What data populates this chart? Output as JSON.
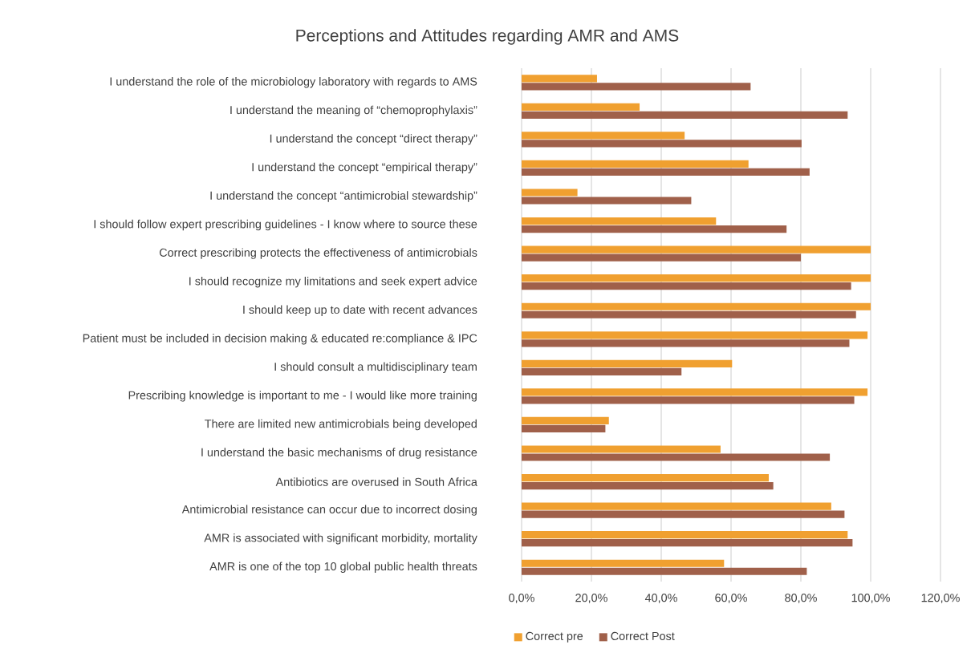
{
  "chart_data": {
    "type": "bar",
    "orientation": "horizontal",
    "title": "Perceptions and Attitudes regarding AMR and AMS",
    "categories": [
      "I understand the role of the microbiology laboratory with regards to AMS",
      "I  understand the meaning of “chemoprophylaxis”",
      "I understand the concept “direct therapy”",
      "I understand the concept “empirical therapy”",
      "I understand the concept “antimicrobial stewardship”",
      "I should follow expert prescribing guidelines - I know where to source these",
      "Correct prescribing protects the effectiveness of antimicrobials",
      "I should recognize my limitations and seek expert advice",
      "I should keep up to date with recent advances",
      "Patient must be included in decision making & educated re:compliance & IPC",
      "I should consult a multidisciplinary team",
      "Prescribing knowledge is important to me - I would like more training",
      "There are limited new antimicrobials being developed",
      "I understand the basic mechanisms of drug resistance",
      "Antibiotics are overused in South Africa",
      "Antimicrobial resistance can occur due to incorrect dosing",
      "AMR is associated with significant morbidity, mortality",
      "AMR is one of the top 10 global public health threats"
    ],
    "series": [
      {
        "name": "Correct pre",
        "color": "#f0a030",
        "values": [
          21.6,
          33.8,
          46.7,
          65.0,
          16.0,
          55.7,
          100,
          100,
          100,
          99.1,
          60.3,
          99.1,
          25.0,
          57.0,
          70.8,
          88.7,
          93.4,
          58.0
        ]
      },
      {
        "name": "Correct Post",
        "color": "#a0604a",
        "values": [
          65.6,
          93.4,
          80.2,
          82.5,
          48.6,
          75.9,
          80,
          94.4,
          95.8,
          93.9,
          45.8,
          95.3,
          24.0,
          88.3,
          72.1,
          92.5,
          94.8,
          81.7
        ]
      }
    ],
    "xlim": [
      0,
      120
    ],
    "xticks": [
      {
        "value": 0,
        "label": "0,0%"
      },
      {
        "value": 20,
        "label": "20,0%"
      },
      {
        "value": 40,
        "label": "40,0%"
      },
      {
        "value": 60,
        "label": "60,0%"
      },
      {
        "value": 80,
        "label": "80,0%"
      },
      {
        "value": 100,
        "label": "100,0%"
      },
      {
        "value": 120,
        "label": "120,0%"
      }
    ],
    "grid": "x",
    "legend": "bottom"
  }
}
